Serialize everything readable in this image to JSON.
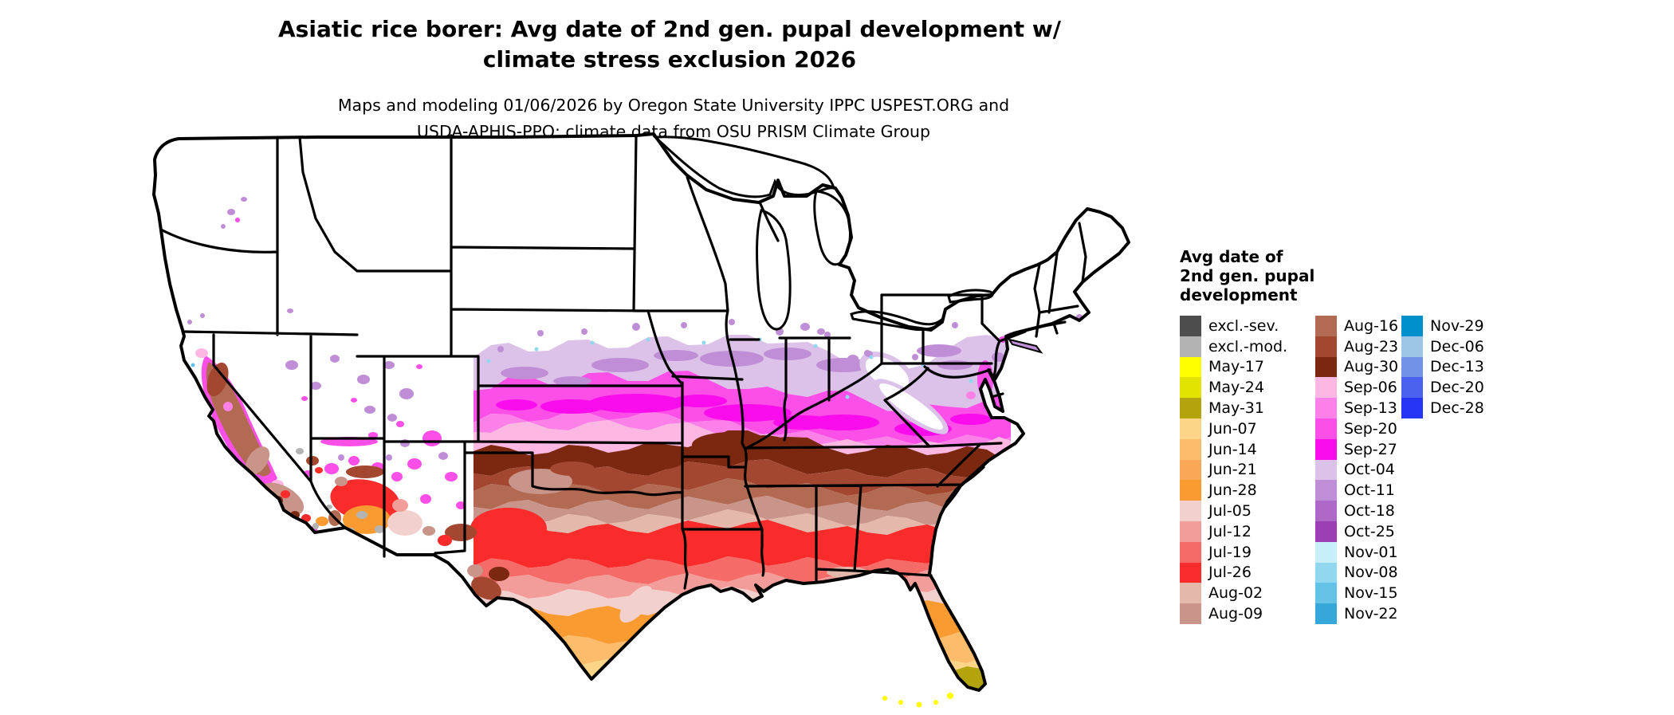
{
  "title": {
    "line1": "Asiatic rice borer: Avg date of 2nd gen. pupal development w/",
    "line2": "climate stress exclusion 2026"
  },
  "subtitle": {
    "line1": "Maps and modeling 01/06/2026 by Oregon State University IPPC USPEST.ORG and",
    "line2": "USDA-APHIS-PPQ; climate data from OSU PRISM Climate Group"
  },
  "map": {
    "region": "Continental United States",
    "kind": "raster choropleth of average date of 2nd generation pupal development"
  },
  "colors": {
    "land": "#ffffff",
    "border": "#000000",
    "excl_sev": "#4d4d4d",
    "excl_mod": "#b3b3b3",
    "may17": "#ffff00",
    "may24": "#e3e300",
    "may31": "#b3a40c",
    "jun07": "#fcd589",
    "jun14": "#fcbc6b",
    "jun21": "#faa857",
    "jun28": "#fa9b32",
    "jul05": "#f2d0cd",
    "jul12": "#f29d9a",
    "jul19": "#f56b68",
    "jul26": "#fa2b2b",
    "aug02": "#e5b8ac",
    "aug09": "#c9948a",
    "aug16": "#b26a52",
    "aug23": "#a34731",
    "aug30": "#7c2810",
    "sep06": "#fdb7e3",
    "sep13": "#fb80e8",
    "sep20": "#fb4fe8",
    "sep27": "#fb0cec",
    "oct04": "#dcc2e8",
    "oct11": "#c08ed6",
    "oct18": "#ad68c8",
    "oct25": "#9c3fb5",
    "nov01": "#c8eefa",
    "nov08": "#92d7f0",
    "nov15": "#64c2e6",
    "nov22": "#35a8d9",
    "nov29": "#0090cc",
    "dec06": "#9cc6e8",
    "dec13": "#7292e8",
    "dec20": "#4a62ee",
    "dec28": "#2635f5"
  },
  "legend": {
    "title_lines": [
      "Avg date of",
      "2nd gen. pupal",
      "development"
    ],
    "columns": [
      {
        "items": [
          {
            "label": "excl.-sev.",
            "color_key": "excl_sev"
          },
          {
            "label": "excl.-mod.",
            "color_key": "excl_mod"
          },
          {
            "label": "May-17",
            "color_key": "may17"
          },
          {
            "label": "May-24",
            "color_key": "may24"
          },
          {
            "label": "May-31",
            "color_key": "may31"
          },
          {
            "label": "Jun-07",
            "color_key": "jun07"
          },
          {
            "label": "Jun-14",
            "color_key": "jun14"
          },
          {
            "label": "Jun-21",
            "color_key": "jun21"
          },
          {
            "label": "Jun-28",
            "color_key": "jun28"
          },
          {
            "label": "Jul-05",
            "color_key": "jul05"
          },
          {
            "label": "Jul-12",
            "color_key": "jul12"
          },
          {
            "label": "Jul-19",
            "color_key": "jul19"
          },
          {
            "label": "Jul-26",
            "color_key": "jul26"
          },
          {
            "label": "Aug-02",
            "color_key": "aug02"
          },
          {
            "label": "Aug-09",
            "color_key": "aug09"
          }
        ]
      },
      {
        "items": [
          {
            "label": "Aug-16",
            "color_key": "aug16"
          },
          {
            "label": "Aug-23",
            "color_key": "aug23"
          },
          {
            "label": "Aug-30",
            "color_key": "aug30"
          },
          {
            "label": "Sep-06",
            "color_key": "sep06"
          },
          {
            "label": "Sep-13",
            "color_key": "sep13"
          },
          {
            "label": "Sep-20",
            "color_key": "sep20"
          },
          {
            "label": "Sep-27",
            "color_key": "sep27"
          },
          {
            "label": "Oct-04",
            "color_key": "oct04"
          },
          {
            "label": "Oct-11",
            "color_key": "oct11"
          },
          {
            "label": "Oct-18",
            "color_key": "oct18"
          },
          {
            "label": "Oct-25",
            "color_key": "oct25"
          },
          {
            "label": "Nov-01",
            "color_key": "nov01"
          },
          {
            "label": "Nov-08",
            "color_key": "nov08"
          },
          {
            "label": "Nov-15",
            "color_key": "nov15"
          },
          {
            "label": "Nov-22",
            "color_key": "nov22"
          }
        ]
      },
      {
        "items": [
          {
            "label": "Nov-29",
            "color_key": "nov29"
          },
          {
            "label": "Dec-06",
            "color_key": "dec06"
          },
          {
            "label": "Dec-13",
            "color_key": "dec13"
          },
          {
            "label": "Dec-20",
            "color_key": "dec20"
          },
          {
            "label": "Dec-28",
            "color_key": "dec28"
          }
        ]
      }
    ]
  }
}
